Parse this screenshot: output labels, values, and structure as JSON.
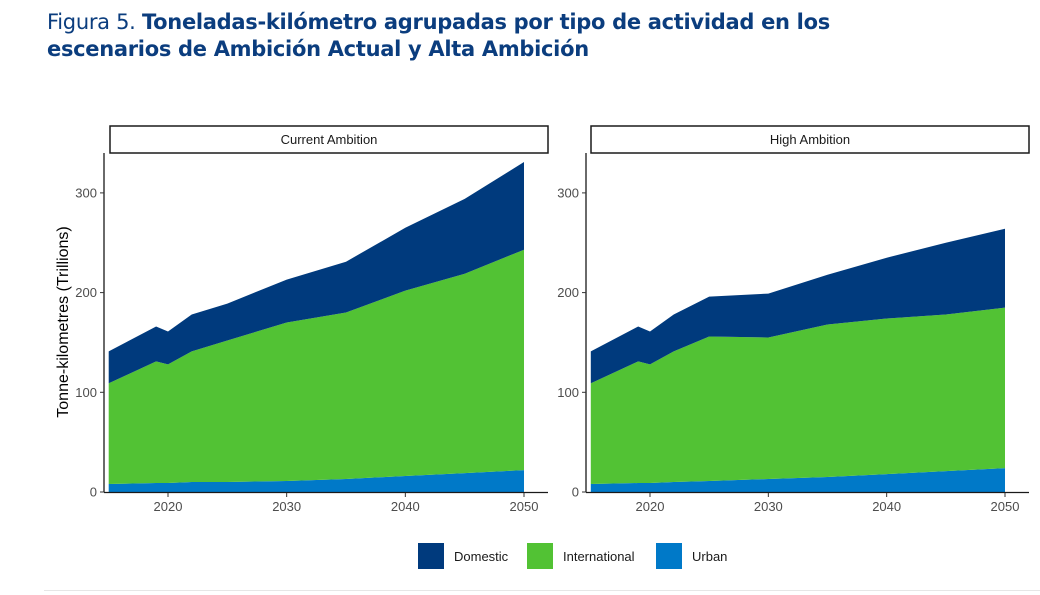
{
  "title": {
    "lead": "Figura 5.",
    "main": "Toneladas-kilómetro agrupadas por tipo de actividad en los escenarios de Ambición Actual y Alta Ambición"
  },
  "chart_data": [
    {
      "type": "area",
      "stacked": true,
      "panel_title": "Current Ambition",
      "ylabel": "Tonne-kilometres (Trillions)",
      "xlabel": "",
      "x": [
        2015,
        2019,
        2020,
        2022,
        2025,
        2030,
        2035,
        2040,
        2045,
        2050
      ],
      "xticks": [
        2020,
        2030,
        2040,
        2050
      ],
      "yticks": [
        0,
        100,
        200,
        300
      ],
      "xlim": [
        2015,
        2050
      ],
      "ylim": [
        0,
        340
      ],
      "grid": false,
      "series": [
        {
          "name": "Urban",
          "color": "#0079C8",
          "values": [
            8,
            9,
            9,
            10,
            10,
            11,
            13,
            16,
            19,
            22
          ]
        },
        {
          "name": "International",
          "color": "#52C234",
          "values": [
            101,
            122,
            119,
            131,
            142,
            159,
            167,
            186,
            200,
            221
          ]
        },
        {
          "name": "Domestic",
          "color": "#003A7D",
          "values": [
            32,
            35,
            33,
            37,
            37,
            43,
            51,
            63,
            75,
            88
          ]
        }
      ]
    },
    {
      "type": "area",
      "stacked": true,
      "panel_title": "High Ambition",
      "ylabel": "",
      "xlabel": "",
      "x": [
        2015,
        2019,
        2020,
        2022,
        2025,
        2030,
        2035,
        2040,
        2045,
        2050
      ],
      "xticks": [
        2020,
        2030,
        2040,
        2050
      ],
      "yticks": [
        0,
        100,
        200,
        300
      ],
      "xlim": [
        2015,
        2050
      ],
      "ylim": [
        0,
        340
      ],
      "grid": false,
      "series": [
        {
          "name": "Urban",
          "color": "#0079C8",
          "values": [
            8,
            9,
            9,
            10,
            11,
            13,
            15,
            18,
            21,
            24
          ]
        },
        {
          "name": "International",
          "color": "#52C234",
          "values": [
            101,
            122,
            119,
            131,
            145,
            142,
            153,
            156,
            157,
            161
          ]
        },
        {
          "name": "Domestic",
          "color": "#003A7D",
          "values": [
            32,
            35,
            33,
            37,
            40,
            44,
            50,
            61,
            72,
            79
          ]
        }
      ]
    }
  ],
  "legend": {
    "position": "bottom",
    "items": [
      {
        "label": "Domestic",
        "color": "#003A7D"
      },
      {
        "label": "International",
        "color": "#52C234"
      },
      {
        "label": "Urban",
        "color": "#0079C8"
      }
    ]
  }
}
